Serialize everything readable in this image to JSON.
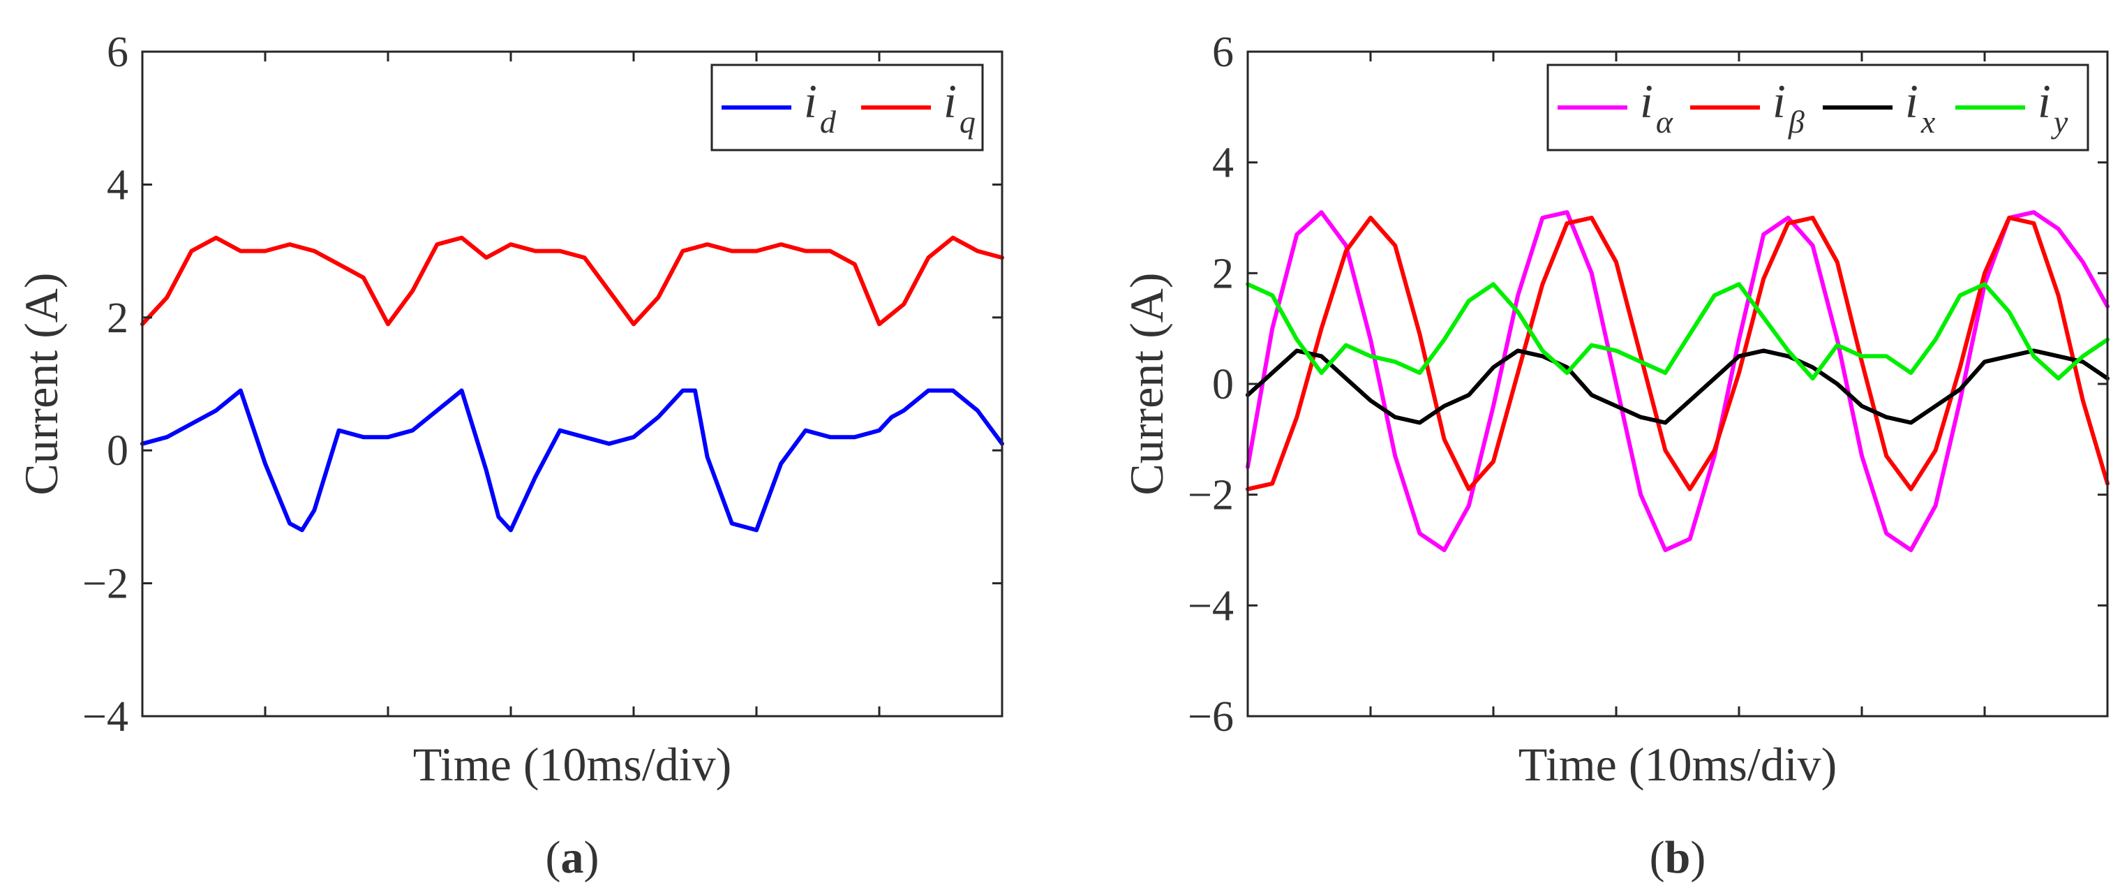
{
  "chart_data": [
    {
      "type": "line",
      "panel_label": "a",
      "xlabel": "Time (10ms/div)",
      "ylabel": "Current (A)",
      "xlim": [
        0,
        70
      ],
      "ylim": [
        -4,
        6
      ],
      "yticks": [
        -4,
        -2,
        0,
        2,
        4,
        6
      ],
      "ytick_labels": [
        "−4",
        "−2",
        "0",
        "2",
        "4",
        "6"
      ],
      "x_divisions": 7,
      "grid": false,
      "legend_position": "top-right",
      "series": [
        {
          "name": "i",
          "subscript": "d",
          "color": "#0000ff",
          "x": [
            0,
            2,
            4,
            6,
            8,
            10,
            12,
            13,
            14,
            16,
            18,
            20,
            22,
            24,
            26,
            28,
            29,
            30,
            32,
            34,
            36,
            38,
            40,
            42,
            44,
            45,
            46,
            48,
            50,
            52,
            54,
            56,
            58,
            60,
            61,
            62,
            64,
            66,
            68,
            70
          ],
          "y": [
            0.1,
            0.2,
            0.4,
            0.6,
            0.9,
            -0.2,
            -1.1,
            -1.2,
            -0.9,
            0.3,
            0.2,
            0.2,
            0.3,
            0.6,
            0.9,
            -0.3,
            -1.0,
            -1.2,
            -0.4,
            0.3,
            0.2,
            0.1,
            0.2,
            0.5,
            0.9,
            0.9,
            -0.1,
            -1.1,
            -1.2,
            -0.2,
            0.3,
            0.2,
            0.2,
            0.3,
            0.5,
            0.6,
            0.9,
            0.9,
            0.6,
            0.1
          ]
        },
        {
          "name": "i",
          "subscript": "q",
          "color": "#ff0000",
          "x": [
            0,
            2,
            4,
            6,
            8,
            10,
            12,
            14,
            16,
            18,
            20,
            22,
            24,
            26,
            28,
            30,
            32,
            34,
            36,
            38,
            40,
            42,
            44,
            46,
            48,
            50,
            52,
            54,
            56,
            58,
            60,
            62,
            64,
            66,
            68,
            70
          ],
          "y": [
            1.9,
            2.3,
            3.0,
            3.2,
            3.0,
            3.0,
            3.1,
            3.0,
            2.8,
            2.6,
            1.9,
            2.4,
            3.1,
            3.2,
            2.9,
            3.1,
            3.0,
            3.0,
            2.9,
            2.4,
            1.9,
            2.3,
            3.0,
            3.1,
            3.0,
            3.0,
            3.1,
            3.0,
            3.0,
            2.8,
            1.9,
            2.2,
            2.9,
            3.2,
            3.0,
            2.9
          ]
        }
      ]
    },
    {
      "type": "line",
      "panel_label": "b",
      "xlabel": "Time  (10ms/div)",
      "ylabel": "Current (A)",
      "xlim": [
        0,
        70
      ],
      "ylim": [
        -6,
        6
      ],
      "yticks": [
        -6,
        -4,
        -2,
        0,
        2,
        4,
        6
      ],
      "ytick_labels": [
        "−6",
        "−4",
        "−2",
        "0",
        "2",
        "4",
        "6"
      ],
      "x_divisions": 7,
      "grid": false,
      "legend_position": "top-right",
      "series": [
        {
          "name": "i",
          "subscript": "α",
          "color": "#ff00ff",
          "x": [
            0,
            2,
            4,
            6,
            8,
            10,
            12,
            14,
            16,
            18,
            20,
            22,
            24,
            26,
            28,
            30,
            32,
            34,
            36,
            38,
            40,
            42,
            44,
            46,
            48,
            50,
            52,
            54,
            56,
            58,
            60,
            62,
            64,
            66,
            68,
            70
          ],
          "y": [
            -1.5,
            1.0,
            2.7,
            3.1,
            2.5,
            0.8,
            -1.3,
            -2.7,
            -3.0,
            -2.2,
            -0.4,
            1.6,
            3.0,
            3.1,
            2.0,
            0.0,
            -2.0,
            -3.0,
            -2.8,
            -1.3,
            0.8,
            2.7,
            3.0,
            2.5,
            0.8,
            -1.3,
            -2.7,
            -3.0,
            -2.2,
            -0.3,
            1.8,
            3.0,
            3.1,
            2.8,
            2.2,
            1.4
          ]
        },
        {
          "name": "i",
          "subscript": "β",
          "color": "#ff0000",
          "x": [
            0,
            2,
            4,
            6,
            8,
            10,
            12,
            14,
            16,
            18,
            20,
            22,
            24,
            26,
            28,
            30,
            32,
            34,
            36,
            38,
            40,
            42,
            44,
            46,
            48,
            50,
            52,
            54,
            56,
            58,
            60,
            62,
            64,
            66,
            68,
            70
          ],
          "y": [
            -1.9,
            -1.8,
            -0.6,
            1.0,
            2.4,
            3.0,
            2.5,
            0.9,
            -1.0,
            -1.9,
            -1.4,
            0.2,
            1.8,
            2.9,
            3.0,
            2.2,
            0.5,
            -1.2,
            -1.9,
            -1.2,
            0.2,
            1.9,
            2.9,
            3.0,
            2.2,
            0.4,
            -1.3,
            -1.9,
            -1.2,
            0.3,
            2.0,
            3.0,
            2.9,
            1.6,
            -0.3,
            -1.8
          ]
        },
        {
          "name": "i",
          "subscript": "x",
          "color": "#000000",
          "x": [
            0,
            2,
            4,
            6,
            8,
            10,
            12,
            14,
            16,
            18,
            20,
            22,
            24,
            26,
            28,
            30,
            32,
            34,
            36,
            38,
            40,
            42,
            44,
            46,
            48,
            50,
            52,
            54,
            56,
            58,
            60,
            62,
            64,
            66,
            68,
            70
          ],
          "y": [
            -0.2,
            0.2,
            0.6,
            0.5,
            0.1,
            -0.3,
            -0.6,
            -0.7,
            -0.4,
            -0.2,
            0.3,
            0.6,
            0.5,
            0.3,
            -0.2,
            -0.4,
            -0.6,
            -0.7,
            -0.3,
            0.1,
            0.5,
            0.6,
            0.5,
            0.3,
            0.0,
            -0.4,
            -0.6,
            -0.7,
            -0.4,
            -0.1,
            0.4,
            0.5,
            0.6,
            0.5,
            0.4,
            0.1
          ]
        },
        {
          "name": "i",
          "subscript": "y",
          "color": "#00ee00",
          "x": [
            0,
            2,
            4,
            6,
            8,
            10,
            12,
            14,
            16,
            18,
            20,
            22,
            24,
            26,
            28,
            30,
            32,
            34,
            36,
            38,
            40,
            42,
            44,
            46,
            48,
            50,
            52,
            54,
            56,
            58,
            60,
            62,
            64,
            66,
            68,
            70
          ],
          "y": [
            1.8,
            1.6,
            0.8,
            0.2,
            0.7,
            0.5,
            0.4,
            0.2,
            0.8,
            1.5,
            1.8,
            1.3,
            0.6,
            0.2,
            0.7,
            0.6,
            0.4,
            0.2,
            0.9,
            1.6,
            1.8,
            1.2,
            0.6,
            0.1,
            0.7,
            0.5,
            0.5,
            0.2,
            0.8,
            1.6,
            1.8,
            1.3,
            0.5,
            0.1,
            0.5,
            0.8
          ]
        }
      ]
    }
  ]
}
